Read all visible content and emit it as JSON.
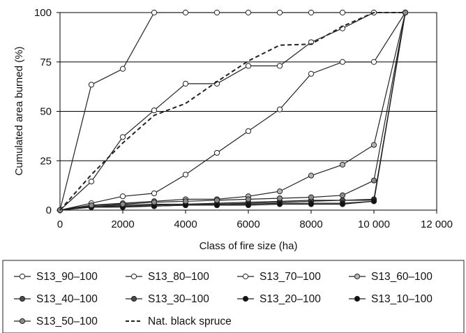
{
  "chart_data": {
    "type": "line",
    "title": "",
    "xlabel": "Class of fire size (ha)",
    "ylabel": "Cumulated area burned (%)",
    "xlim": [
      0,
      12000
    ],
    "ylim": [
      0,
      100
    ],
    "xticks": [
      0,
      2000,
      4000,
      6000,
      8000,
      10000,
      12000
    ],
    "xtick_labels": [
      "0",
      "2000",
      "4000",
      "6000",
      "8000",
      "10 000",
      "12 000"
    ],
    "yticks": [
      0,
      25,
      50,
      75,
      100
    ],
    "ytick_labels": [
      "0",
      "25",
      "50",
      "75",
      "100"
    ],
    "grid": "horizontal",
    "legend_position": "bottom",
    "x": [
      0,
      1000,
      2000,
      3000,
      4000,
      5000,
      6000,
      7000,
      8000,
      9000,
      10000,
      11000
    ],
    "series": [
      {
        "name": "S13_90–100",
        "marker": "open",
        "values": [
          0,
          63.5,
          71.5,
          100,
          100,
          100,
          100,
          100,
          100,
          100,
          100,
          100
        ]
      },
      {
        "name": "S13_80–100",
        "marker": "open",
        "values": [
          0,
          14.5,
          37,
          50.5,
          64,
          64,
          73,
          73,
          85,
          92,
          100,
          100
        ]
      },
      {
        "name": "S13_70–100",
        "marker": "open",
        "values": [
          0,
          3.5,
          7,
          8.5,
          18,
          29,
          40,
          51,
          69,
          75,
          75,
          100
        ]
      },
      {
        "name": "S13_60–100",
        "marker": "light-gray",
        "values": [
          0,
          2.5,
          3.5,
          4.5,
          5.5,
          5.5,
          7,
          9.5,
          17.5,
          23,
          33,
          100
        ]
      },
      {
        "name": "S13_40–100",
        "marker": "dark-gray",
        "values": [
          0,
          2,
          2.5,
          3,
          3,
          3.5,
          4,
          4.5,
          5,
          5,
          5.5,
          100
        ]
      },
      {
        "name": "S13_30–100",
        "marker": "dark-gray",
        "values": [
          0,
          2,
          2,
          2.5,
          3,
          3,
          3.5,
          4,
          4.5,
          5,
          5,
          100
        ]
      },
      {
        "name": "S13_20–100",
        "marker": "black",
        "values": [
          0,
          1.5,
          2,
          2,
          2.5,
          2.5,
          3,
          3.5,
          3.5,
          3.5,
          4.5,
          100
        ]
      },
      {
        "name": "S13_10–100",
        "marker": "black",
        "values": [
          0,
          1.5,
          1.5,
          2,
          2.5,
          2.5,
          2.5,
          3,
          3,
          3,
          4.5,
          100
        ]
      },
      {
        "name": "S13_50–100",
        "marker": "mid-gray",
        "values": [
          0,
          2.5,
          3,
          4,
          4.5,
          5,
          5.5,
          6,
          6.5,
          7.5,
          15,
          100
        ]
      },
      {
        "name": "Nat. black spruce",
        "marker": "none",
        "dashed": true,
        "values": [
          0,
          18,
          34,
          48,
          54,
          65,
          75.5,
          83.5,
          84,
          93,
          100,
          100
        ]
      }
    ],
    "colors": {
      "open": "#ffffff",
      "light-gray": "#b5b5b5",
      "mid-gray": "#8a8a8a",
      "dark-gray": "#4a4a4a",
      "black": "#111111",
      "line": "#222222",
      "grid": "#000000"
    }
  }
}
